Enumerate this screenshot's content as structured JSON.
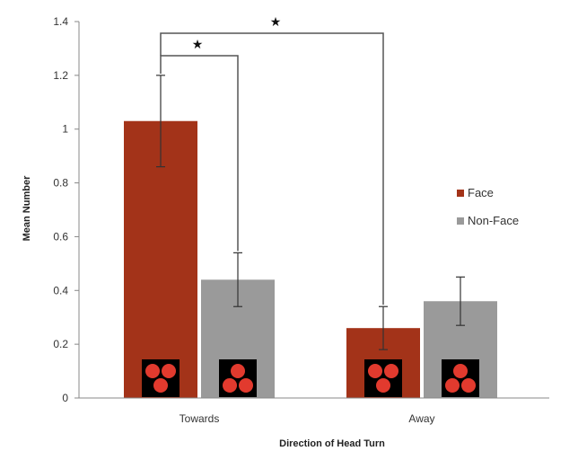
{
  "chart_data": {
    "type": "bar",
    "title": "",
    "xlabel": "Direction of Head Turn",
    "ylabel": "Mean Number",
    "ylim": [
      0,
      1.4
    ],
    "yticks": [
      "0",
      "0.2",
      "0.4",
      "0.6",
      "0.8",
      "1",
      "1.2",
      "1.4"
    ],
    "categories": [
      "Towards",
      "Away"
    ],
    "series": [
      {
        "name": "Face",
        "color": "#a33319",
        "values": [
          1.03,
          0.26
        ],
        "error": [
          0.17,
          0.08
        ]
      },
      {
        "name": "Non-Face",
        "color": "#9a9a9a",
        "values": [
          0.44,
          0.36
        ],
        "error": [
          0.1,
          0.09
        ]
      }
    ],
    "legend_position": "right",
    "grid": false,
    "annotations": [
      {
        "symbol": "★",
        "from": [
          "Towards",
          "Face"
        ],
        "to": [
          "Towards",
          "Non-Face"
        ]
      },
      {
        "symbol": "★",
        "from": [
          "Towards",
          "Face"
        ],
        "to": [
          "Away",
          "Face"
        ]
      }
    ],
    "bar_icon": "three-red-dots-icon",
    "icon_colors": {
      "background": "#000000",
      "dot": "#e23a2e"
    }
  }
}
